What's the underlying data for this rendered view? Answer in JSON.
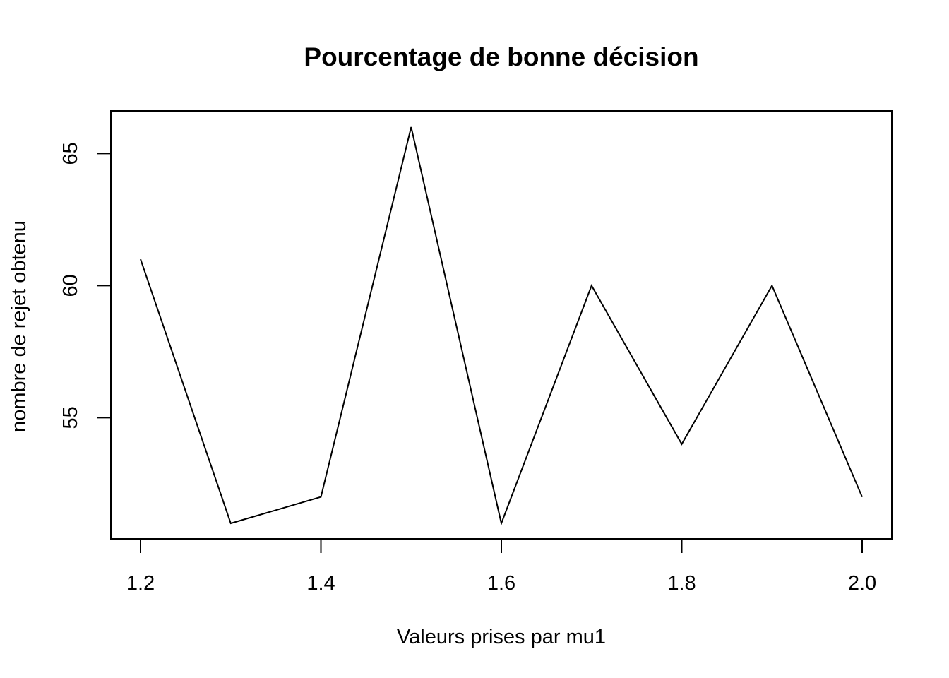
{
  "chart_data": {
    "type": "line",
    "title": "Pourcentage de bonne décision",
    "xlabel": "Valeurs prises par mu1",
    "ylabel": "nombre de rejet obtenu",
    "x": [
      1.2,
      1.3,
      1.4,
      1.5,
      1.6,
      1.7,
      1.8,
      1.9,
      2.0
    ],
    "series": [
      {
        "values": [
          61,
          51,
          52,
          66,
          51,
          60,
          54,
          60,
          52
        ]
      }
    ],
    "xlim": [
      1.2,
      2.0
    ],
    "ylim": [
      51,
      66
    ],
    "xticks": [
      "1.2",
      "1.4",
      "1.6",
      "1.8",
      "2.0"
    ],
    "yticks": [
      "55",
      "60",
      "65"
    ],
    "grid": false,
    "line_color": "#000000"
  }
}
